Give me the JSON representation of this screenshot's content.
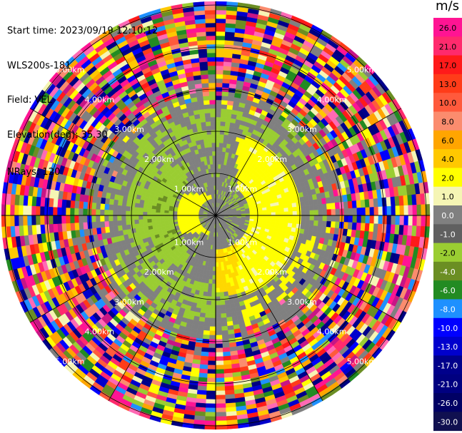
{
  "header": {
    "start_time": "Start time: 2023/09/19 12:10:12",
    "instrument": "WLS200s-181",
    "field": "Field: VEL",
    "elevation": "Elevation(deg): 35.30",
    "nrays": "NRays: 120"
  },
  "chart_data": {
    "type": "heatmap",
    "projection": "polar PPI",
    "n_rays": 120,
    "range_ring_labels": [
      "1.00km",
      "2.00km",
      "3.00km",
      "4.00km",
      "5.00km"
    ],
    "colorbar": {
      "unit": "m/s",
      "ticks": [
        "26.0",
        "21.0",
        "17.0",
        "13.0",
        "10.0",
        "8.0",
        "6.0",
        "4.0",
        "2.0",
        "1.0",
        "0.0",
        "-1.0",
        "-2.0",
        "-4.0",
        "-6.0",
        "-8.0",
        "-10.0",
        "-13.0",
        "-17.0",
        "-21.0",
        "-26.0",
        "-30.0"
      ],
      "colors": [
        "#ff1493",
        "#ff2a6d",
        "#ff1a1a",
        "#ff3c19",
        "#ff5a3c",
        "#fb8c6e",
        "#ffa500",
        "#ffc800",
        "#ffff00",
        "#f5f5b4",
        "#808080",
        "#606060",
        "#9acd32",
        "#6b8e23",
        "#228b22",
        "#1e90ff",
        "#0000ff",
        "#0000cd",
        "#00008b",
        "#000080",
        "#000064",
        "#101050"
      ]
    }
  }
}
